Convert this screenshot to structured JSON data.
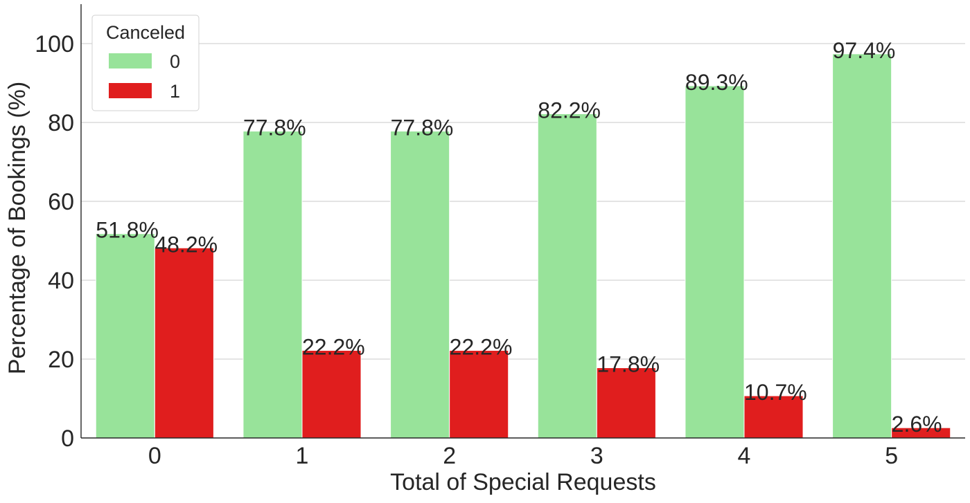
{
  "chart_data": {
    "type": "bar",
    "xlabel": "Total of Special Requests",
    "ylabel": "Percentage of Bookings (%)",
    "categories": [
      "0",
      "1",
      "2",
      "3",
      "4",
      "5"
    ],
    "ylim": [
      0,
      110
    ],
    "yticks": [
      0,
      20,
      40,
      60,
      80,
      100
    ],
    "grid": "horizontal",
    "legend": {
      "title": "Canceled",
      "placement": "top-left"
    },
    "series": [
      {
        "name": "0",
        "color": "#98e39a",
        "values": [
          51.8,
          77.8,
          77.8,
          82.2,
          89.3,
          97.4
        ],
        "labels": [
          "51.8%",
          "77.8%",
          "77.8%",
          "82.2%",
          "89.3%",
          "97.4%"
        ]
      },
      {
        "name": "1",
        "color": "#e01e1e",
        "values": [
          48.2,
          22.2,
          22.2,
          17.8,
          10.7,
          2.6
        ],
        "labels": [
          "48.2%",
          "22.2%",
          "22.2%",
          "17.8%",
          "10.7%",
          "2.6%"
        ]
      }
    ]
  }
}
